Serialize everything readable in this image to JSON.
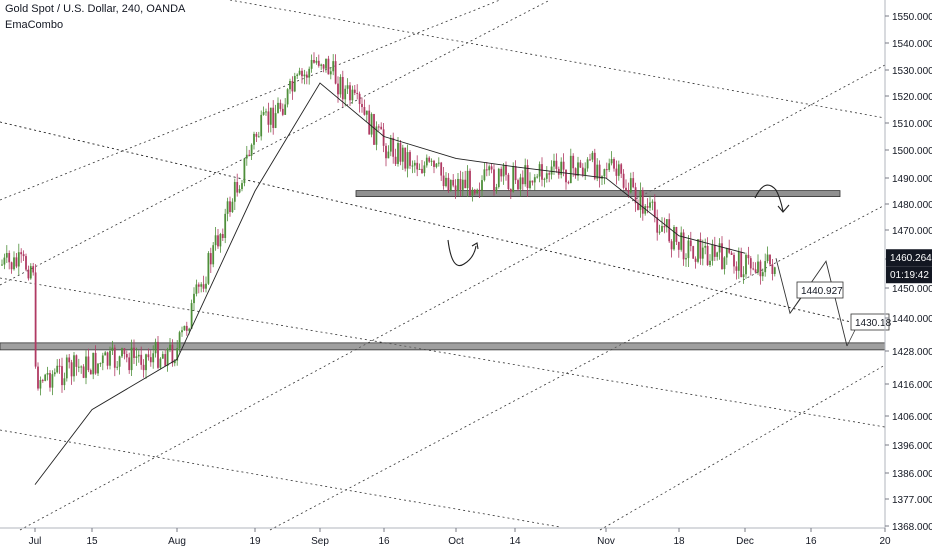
{
  "header": {
    "title": "Gold Spot / U.S. Dollar, 240, OANDA",
    "indicator": "EmaCombo"
  },
  "colors": {
    "up": "#4e8f3a",
    "down": "#b03a63",
    "price_tag_bg": "#131722",
    "price_tag_fg": "#ffffff",
    "axis_text": "#131722",
    "zone_fill": "#6b6b6b"
  },
  "chart_data": {
    "type": "candlestick",
    "symbol": "Gold Spot / U.S. Dollar",
    "timeframe": "240",
    "source": "OANDA",
    "y_axis_ticks": [
      1368.0,
      1377.0,
      1386.0,
      1396.0,
      1406.0,
      1416.0,
      1428.0,
      1440.0,
      1450.0,
      1460.0,
      1470.0,
      1480.0,
      1490.0,
      1500.0,
      1510.0,
      1520.0,
      1530.0,
      1540.0,
      1550.0
    ],
    "y_axis_tick_labels": [
      "1368.000",
      "1377.000",
      "1386.000",
      "1396.000",
      "1406.000",
      "1416.000",
      "1428.000",
      "1440.000",
      "1450.000",
      "1460.000",
      "1470.000",
      "1480.000",
      "1490.000",
      "1500.000",
      "1510.000",
      "1520.000",
      "1530.000",
      "1540.000",
      "1550.000"
    ],
    "ylim": [
      1362,
      1557
    ],
    "x_axis_labels": [
      "Jul",
      "15",
      "Aug",
      "19",
      "Sep",
      "16",
      "Oct",
      "14",
      "Nov",
      "18",
      "Dec",
      "16",
      "20"
    ],
    "price_path": [
      {
        "x": "Jul",
        "price": 1418
      },
      {
        "x": "15",
        "price": 1423
      },
      {
        "x": "Aug",
        "price": 1428
      },
      {
        "x": "19",
        "price": 1505
      },
      {
        "x": "Sep",
        "price": 1535
      },
      {
        "x": "16",
        "price": 1502
      },
      {
        "x": "Oct",
        "price": 1488
      },
      {
        "x": "14",
        "price": 1490
      },
      {
        "x": "Nov",
        "price": 1495
      },
      {
        "x": "18",
        "price": 1465
      },
      {
        "x": "Dec",
        "price": 1458
      }
    ],
    "ema_path": [
      {
        "x": "Jul",
        "price": 1382
      },
      {
        "x": "15",
        "price": 1408
      },
      {
        "x": "Aug",
        "price": 1425
      },
      {
        "x": "19",
        "price": 1485
      },
      {
        "x": "Sep",
        "price": 1525
      },
      {
        "x": "16",
        "price": 1505
      },
      {
        "x": "Oct",
        "price": 1497
      },
      {
        "x": "14",
        "price": 1494
      },
      {
        "x": "Nov",
        "price": 1490
      },
      {
        "x": "18",
        "price": 1468
      },
      {
        "x": "Dec",
        "price": 1462
      }
    ],
    "support_zones": [
      {
        "price": 1484,
        "from": "16",
        "to": "16",
        "label": "",
        "extend": "to right of Dec"
      },
      {
        "price": 1429.5,
        "from": "Jul",
        "to": "20",
        "label": ""
      }
    ],
    "projections": [
      {
        "price": 1440.927,
        "label": "1440.927"
      },
      {
        "price": 1430.18,
        "label": "1430.18"
      }
    ],
    "current_price": {
      "value": 1460.264,
      "label": "1460.264",
      "countdown": "01:19:42"
    },
    "grid": false,
    "annotations": [
      "dotted trend channel lines",
      "curved arrow near Oct low",
      "curved arrow near Dec high"
    ]
  }
}
